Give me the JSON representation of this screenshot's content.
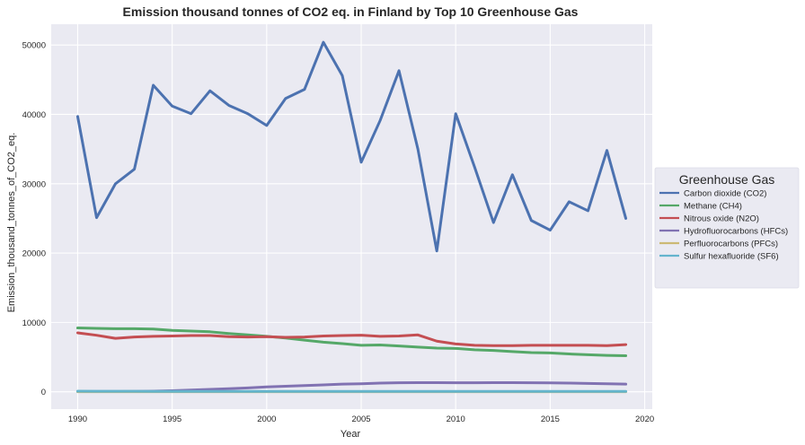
{
  "chart_data": {
    "type": "line",
    "title": "Emission thousand tonnes of CO2 eq. in Finland by Top 10 Greenhouse Gas",
    "xlabel": "Year",
    "ylabel": "Emission_thousand_tonnes_of_CO2_eq.",
    "xlim": [
      1988.6,
      2020.4
    ],
    "ylim": [
      -2500,
      53000
    ],
    "xticks": [
      1990,
      1995,
      2000,
      2005,
      2010,
      2015,
      2020
    ],
    "yticks": [
      0,
      10000,
      20000,
      30000,
      40000,
      50000
    ],
    "grid": true,
    "legend": {
      "title": "Greenhouse Gas",
      "placement": "right-outside"
    },
    "x": [
      1990,
      1991,
      1992,
      1993,
      1994,
      1995,
      1996,
      1997,
      1998,
      1999,
      2000,
      2001,
      2002,
      2003,
      2004,
      2005,
      2006,
      2007,
      2008,
      2009,
      2010,
      2011,
      2012,
      2013,
      2014,
      2015,
      2016,
      2017,
      2018,
      2019
    ],
    "series": [
      {
        "name": "Carbon dioxide (CO2)",
        "color": "#4c72b0",
        "values": [
          39700,
          25100,
          30000,
          32100,
          44200,
          41200,
          40100,
          43400,
          41300,
          40100,
          38400,
          42300,
          43600,
          50400,
          45600,
          33100,
          39100,
          46300,
          35000,
          20300,
          40100,
          32400,
          24400,
          31300,
          24700,
          23300,
          27400,
          26100,
          34800,
          25000
        ]
      },
      {
        "name": "Methane (CH4)",
        "color": "#55a868",
        "values": [
          9200,
          9150,
          9100,
          9100,
          9050,
          8850,
          8750,
          8650,
          8400,
          8200,
          8000,
          7750,
          7450,
          7150,
          6950,
          6700,
          6750,
          6600,
          6450,
          6300,
          6250,
          6050,
          5950,
          5800,
          5650,
          5600,
          5450,
          5350,
          5250,
          5200
        ]
      },
      {
        "name": "Nitrous oxide (N2O)",
        "color": "#c44e52",
        "values": [
          8500,
          8150,
          7700,
          7900,
          8000,
          8050,
          8100,
          8100,
          7950,
          7900,
          7950,
          7850,
          7900,
          8050,
          8100,
          8150,
          8000,
          8050,
          8200,
          7300,
          6900,
          6700,
          6650,
          6650,
          6700,
          6700,
          6700,
          6700,
          6650,
          6800
        ]
      },
      {
        "name": "Hydrofluorocarbons (HFCs)",
        "color": "#8172b2",
        "values": [
          40,
          40,
          40,
          50,
          80,
          150,
          250,
          350,
          450,
          550,
          700,
          800,
          900,
          1000,
          1100,
          1150,
          1250,
          1300,
          1320,
          1320,
          1300,
          1300,
          1320,
          1320,
          1300,
          1280,
          1250,
          1200,
          1150,
          1100
        ]
      },
      {
        "name": "Perfluorocarbons (PFCs)",
        "color": "#ccb974",
        "values": [
          10,
          10,
          10,
          10,
          10,
          10,
          10,
          10,
          10,
          10,
          10,
          10,
          10,
          10,
          10,
          10,
          10,
          10,
          10,
          10,
          10,
          10,
          10,
          10,
          10,
          10,
          10,
          10,
          10,
          10
        ]
      },
      {
        "name": "Sulfur hexafluoride (SF6)",
        "color": "#64b5cd",
        "values": [
          80,
          75,
          70,
          65,
          60,
          60,
          55,
          55,
          55,
          50,
          50,
          50,
          50,
          50,
          50,
          50,
          50,
          50,
          50,
          50,
          50,
          50,
          50,
          50,
          50,
          50,
          50,
          50,
          50,
          50
        ]
      }
    ]
  }
}
